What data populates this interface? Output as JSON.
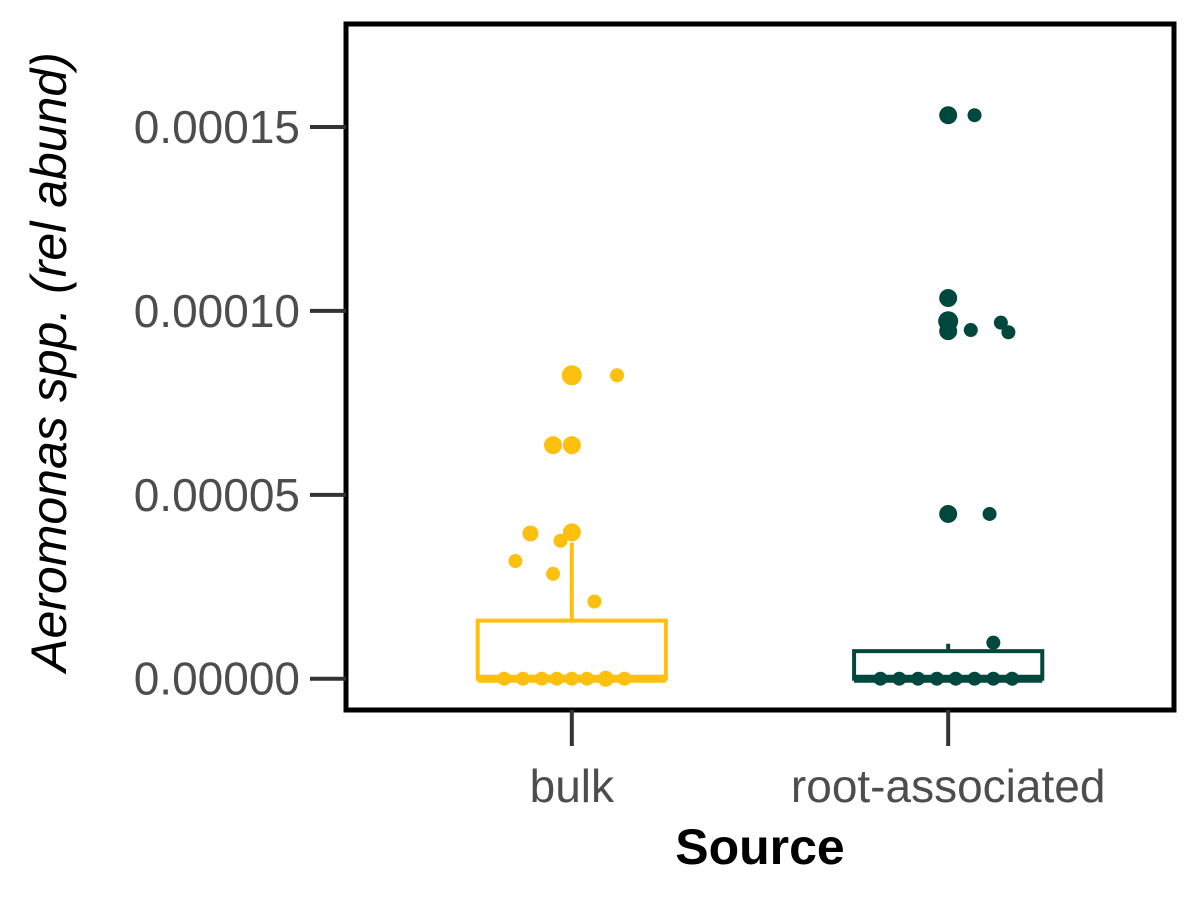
{
  "chart_data": {
    "type": "box",
    "title": "",
    "xlabel": "Source",
    "ylabel": "Aeromonas spp. (rel abund)",
    "ylim": [
      -8.5e-06,
      0.000178
    ],
    "yticks": [
      0,
      5e-05,
      0.0001,
      0.00015
    ],
    "ytick_labels": [
      "0.00000",
      "0.00005",
      "0.00010",
      "0.00015"
    ],
    "categories": [
      "bulk",
      "root-associated"
    ],
    "grid": false,
    "legend": "none",
    "colors": {
      "bulk": "#FDC00F",
      "root-associated": "#00473E",
      "axis": "#000000",
      "tick_label": "#4d4d4d"
    },
    "boxes": [
      {
        "category": "bulk",
        "q1": 0,
        "median": 0,
        "q3": 1.58e-05,
        "whisker_low": 0,
        "whisker_high": 3.7e-05
      },
      {
        "category": "root-associated",
        "q1": 0,
        "median": 0,
        "q3": 7.5e-06,
        "whisker_low": 0,
        "whisker_high": 9.5e-06
      }
    ],
    "points": [
      {
        "category": "bulk",
        "offset": 0.0,
        "y": 8.25e-05,
        "r": 10
      },
      {
        "category": "bulk",
        "offset": 0.12,
        "y": 8.25e-05,
        "r": 7
      },
      {
        "category": "bulk",
        "offset": -0.05,
        "y": 6.35e-05,
        "r": 9
      },
      {
        "category": "bulk",
        "offset": 0.0,
        "y": 6.35e-05,
        "r": 9
      },
      {
        "category": "bulk",
        "offset": -0.11,
        "y": 3.95e-05,
        "r": 8
      },
      {
        "category": "bulk",
        "offset": 0.0,
        "y": 3.98e-05,
        "r": 9
      },
      {
        "category": "bulk",
        "offset": -0.03,
        "y": 3.75e-05,
        "r": 7
      },
      {
        "category": "bulk",
        "offset": -0.15,
        "y": 3.2e-05,
        "r": 7
      },
      {
        "category": "bulk",
        "offset": -0.05,
        "y": 2.85e-05,
        "r": 7
      },
      {
        "category": "bulk",
        "offset": 0.06,
        "y": 2.1e-05,
        "r": 7
      },
      {
        "category": "bulk",
        "offset": -0.18,
        "y": 0,
        "r": 7
      },
      {
        "category": "bulk",
        "offset": -0.13,
        "y": 0,
        "r": 7
      },
      {
        "category": "bulk",
        "offset": -0.08,
        "y": 0,
        "r": 7
      },
      {
        "category": "bulk",
        "offset": -0.04,
        "y": 0,
        "r": 7
      },
      {
        "category": "bulk",
        "offset": 0.0,
        "y": 0,
        "r": 7
      },
      {
        "category": "bulk",
        "offset": 0.04,
        "y": 0,
        "r": 7
      },
      {
        "category": "bulk",
        "offset": 0.09,
        "y": 0,
        "r": 8
      },
      {
        "category": "bulk",
        "offset": 0.14,
        "y": 0,
        "r": 7
      },
      {
        "category": "root-associated",
        "offset": 0.0,
        "y": 0.0001532,
        "r": 9
      },
      {
        "category": "root-associated",
        "offset": 0.07,
        "y": 0.0001532,
        "r": 7
      },
      {
        "category": "root-associated",
        "offset": 0.0,
        "y": 0.0001035,
        "r": 9
      },
      {
        "category": "root-associated",
        "offset": 0.0,
        "y": 9.72e-05,
        "r": 10
      },
      {
        "category": "root-associated",
        "offset": 0.14,
        "y": 9.68e-05,
        "r": 7
      },
      {
        "category": "root-associated",
        "offset": 0.0,
        "y": 9.45e-05,
        "r": 9
      },
      {
        "category": "root-associated",
        "offset": 0.06,
        "y": 9.48e-05,
        "r": 7
      },
      {
        "category": "root-associated",
        "offset": 0.16,
        "y": 9.42e-05,
        "r": 7
      },
      {
        "category": "root-associated",
        "offset": 0.0,
        "y": 4.48e-05,
        "r": 9
      },
      {
        "category": "root-associated",
        "offset": 0.11,
        "y": 4.48e-05,
        "r": 7
      },
      {
        "category": "root-associated",
        "offset": 0.12,
        "y": 9.8e-06,
        "r": 7
      },
      {
        "category": "root-associated",
        "offset": -0.18,
        "y": 0,
        "r": 7
      },
      {
        "category": "root-associated",
        "offset": -0.13,
        "y": 0,
        "r": 7
      },
      {
        "category": "root-associated",
        "offset": -0.08,
        "y": 0,
        "r": 7
      },
      {
        "category": "root-associated",
        "offset": -0.03,
        "y": 0,
        "r": 7
      },
      {
        "category": "root-associated",
        "offset": 0.02,
        "y": 0,
        "r": 7
      },
      {
        "category": "root-associated",
        "offset": 0.07,
        "y": 0,
        "r": 7
      },
      {
        "category": "root-associated",
        "offset": 0.12,
        "y": 0,
        "r": 7
      },
      {
        "category": "root-associated",
        "offset": 0.17,
        "y": 0,
        "r": 7
      }
    ]
  }
}
